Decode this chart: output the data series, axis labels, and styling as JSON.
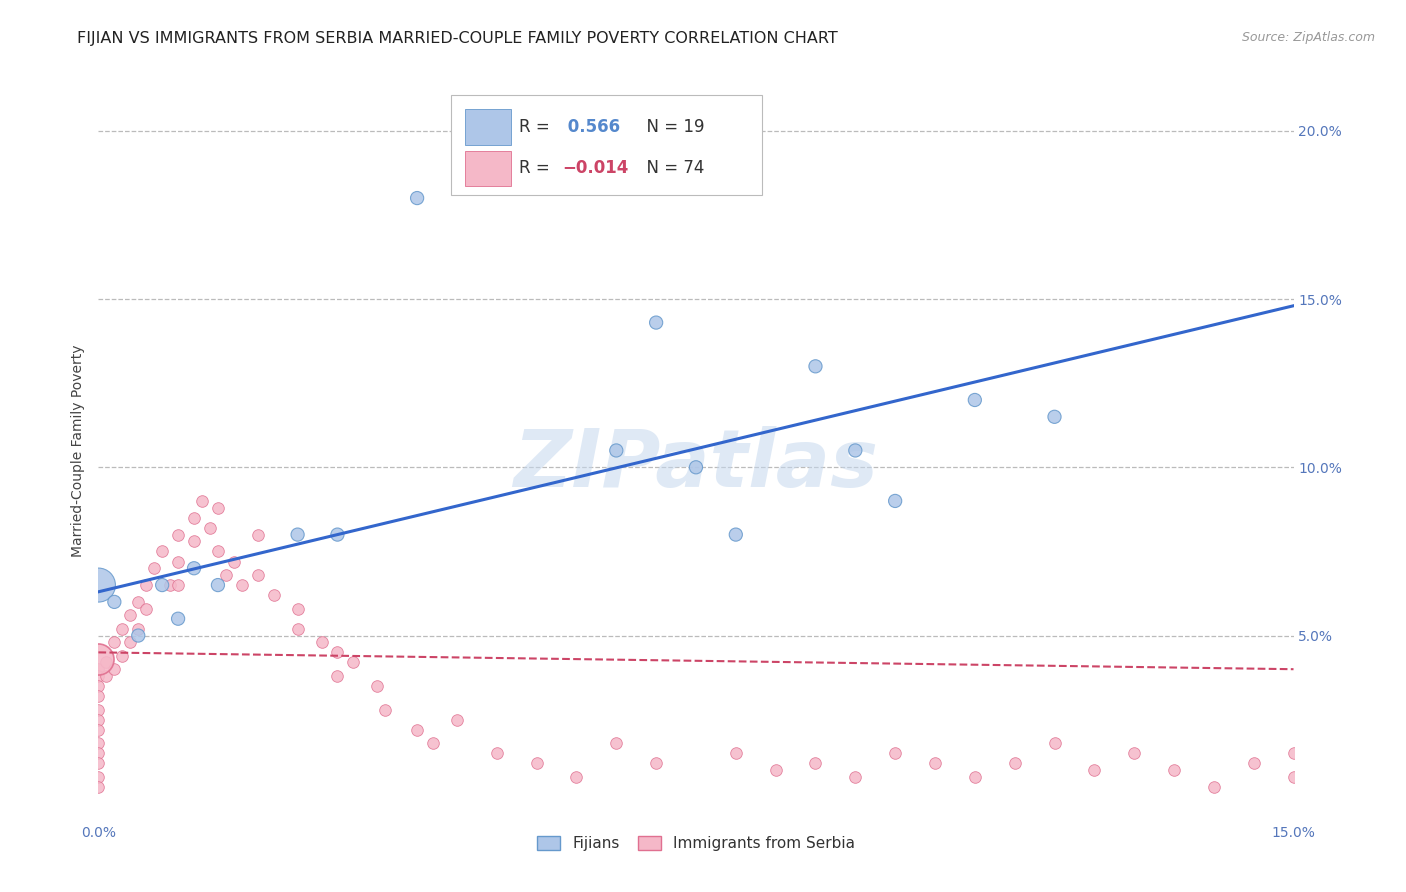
{
  "title": "FIJIAN VS IMMIGRANTS FROM SERBIA MARRIED-COUPLE FAMILY POVERTY CORRELATION CHART",
  "source": "Source: ZipAtlas.com",
  "ylabel": "Married-Couple Family Poverty",
  "xlim": [
    0.0,
    0.15
  ],
  "ylim": [
    -0.005,
    0.215
  ],
  "background_color": "#ffffff",
  "fijian_color": "#aec6e8",
  "fijian_edge_color": "#6699cc",
  "serbia_color": "#f5b8c8",
  "serbia_edge_color": "#e07090",
  "blue_line_color": "#3366cc",
  "pink_line_color": "#cc4466",
  "R_fijian": 0.566,
  "N_fijian": 19,
  "R_serbia": -0.014,
  "N_serbia": 74,
  "grid_color": "#bbbbbb",
  "title_fontsize": 11.5,
  "axis_label_fontsize": 10,
  "tick_fontsize": 10,
  "blue_line_y0": 0.063,
  "blue_line_y1": 0.148,
  "pink_line_y0": 0.045,
  "pink_line_y1": 0.04,
  "fijian_x": [
    0.0,
    0.002,
    0.005,
    0.008,
    0.01,
    0.012,
    0.015,
    0.025,
    0.03,
    0.04,
    0.065,
    0.07,
    0.075,
    0.08,
    0.09,
    0.095,
    0.1,
    0.11,
    0.12
  ],
  "fijian_y": [
    0.065,
    0.06,
    0.05,
    0.065,
    0.055,
    0.07,
    0.065,
    0.08,
    0.08,
    0.18,
    0.105,
    0.143,
    0.1,
    0.08,
    0.13,
    0.105,
    0.09,
    0.12,
    0.115
  ],
  "fijian_sizes": [
    600,
    90,
    90,
    90,
    90,
    90,
    90,
    90,
    90,
    90,
    90,
    90,
    90,
    90,
    90,
    90,
    90,
    90,
    90
  ],
  "serbia_x": [
    0.0,
    0.0,
    0.0,
    0.0,
    0.0,
    0.0,
    0.0,
    0.0,
    0.0,
    0.0,
    0.0,
    0.0,
    0.001,
    0.001,
    0.002,
    0.002,
    0.003,
    0.003,
    0.004,
    0.004,
    0.005,
    0.005,
    0.006,
    0.006,
    0.007,
    0.008,
    0.009,
    0.01,
    0.01,
    0.01,
    0.012,
    0.012,
    0.013,
    0.014,
    0.015,
    0.015,
    0.016,
    0.017,
    0.018,
    0.02,
    0.02,
    0.022,
    0.025,
    0.025,
    0.028,
    0.03,
    0.03,
    0.032,
    0.035,
    0.036,
    0.04,
    0.042,
    0.045,
    0.05,
    0.055,
    0.06,
    0.065,
    0.07,
    0.08,
    0.085,
    0.09,
    0.095,
    0.1,
    0.105,
    0.11,
    0.115,
    0.12,
    0.125,
    0.13,
    0.135,
    0.14,
    0.145,
    0.15,
    0.15
  ],
  "serbia_y": [
    0.04,
    0.038,
    0.035,
    0.032,
    0.028,
    0.025,
    0.022,
    0.018,
    0.015,
    0.012,
    0.008,
    0.005,
    0.042,
    0.038,
    0.048,
    0.04,
    0.052,
    0.044,
    0.056,
    0.048,
    0.06,
    0.052,
    0.065,
    0.058,
    0.07,
    0.075,
    0.065,
    0.08,
    0.072,
    0.065,
    0.085,
    0.078,
    0.09,
    0.082,
    0.088,
    0.075,
    0.068,
    0.072,
    0.065,
    0.08,
    0.068,
    0.062,
    0.058,
    0.052,
    0.048,
    0.045,
    0.038,
    0.042,
    0.035,
    0.028,
    0.022,
    0.018,
    0.025,
    0.015,
    0.012,
    0.008,
    0.018,
    0.012,
    0.015,
    0.01,
    0.012,
    0.008,
    0.015,
    0.012,
    0.008,
    0.012,
    0.018,
    0.01,
    0.015,
    0.01,
    0.005,
    0.012,
    0.015,
    0.008
  ],
  "serbia_big_x": [
    0.0
  ],
  "serbia_big_y": [
    0.043
  ],
  "serbia_big_size": [
    500
  ]
}
